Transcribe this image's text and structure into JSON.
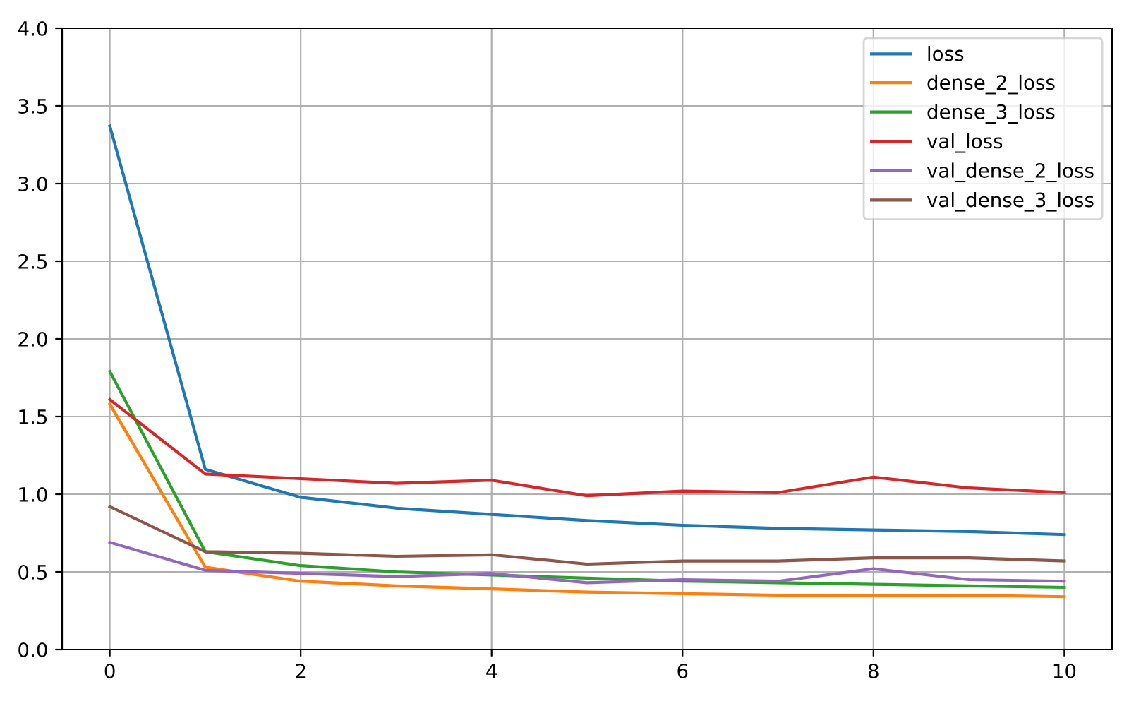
{
  "chart_data": {
    "type": "line",
    "x": [
      0,
      1,
      2,
      3,
      4,
      5,
      6,
      7,
      8,
      9,
      10
    ],
    "xlim": [
      -0.5,
      10.5
    ],
    "xticks": [
      0,
      2,
      4,
      6,
      8,
      10
    ],
    "ylim": [
      0,
      4
    ],
    "yticks": [
      {
        "value": 0,
        "label": "0.0"
      },
      0.5,
      {
        "value": 1,
        "label": "1.0"
      },
      1.5,
      {
        "value": 2,
        "label": "2.0"
      },
      2.5,
      {
        "value": 3,
        "label": "3.0"
      },
      3.5,
      {
        "value": 4,
        "label": "4.0"
      }
    ],
    "grid": true,
    "legend": "top right",
    "series": [
      {
        "name": "loss",
        "color": "#1f77b4",
        "values": [
          3.37,
          1.16,
          0.98,
          0.91,
          0.87,
          0.83,
          0.8,
          0.78,
          0.77,
          0.76,
          0.74
        ]
      },
      {
        "name": "dense_2_loss",
        "color": "#ff7f0e",
        "values": [
          1.58,
          0.53,
          0.44,
          0.41,
          0.39,
          0.37,
          0.36,
          0.35,
          0.35,
          0.35,
          0.34
        ]
      },
      {
        "name": "dense_3_loss",
        "color": "#2ca02c",
        "values": [
          1.79,
          0.63,
          0.54,
          0.5,
          0.48,
          0.46,
          0.44,
          0.43,
          0.42,
          0.41,
          0.4
        ]
      },
      {
        "name": "val_loss",
        "color": "#d62728",
        "values": [
          1.61,
          1.13,
          1.1,
          1.07,
          1.09,
          0.99,
          1.02,
          1.01,
          1.11,
          1.04,
          1.01
        ]
      },
      {
        "name": "val_dense_2_loss",
        "color": "#9467bd",
        "values": [
          0.69,
          0.51,
          0.49,
          0.47,
          0.49,
          0.43,
          0.45,
          0.44,
          0.52,
          0.45,
          0.44
        ]
      },
      {
        "name": "val_dense_3_loss",
        "color": "#8c564b",
        "values": [
          0.92,
          0.63,
          0.62,
          0.6,
          0.61,
          0.55,
          0.57,
          0.57,
          0.59,
          0.59,
          0.57
        ]
      }
    ]
  }
}
